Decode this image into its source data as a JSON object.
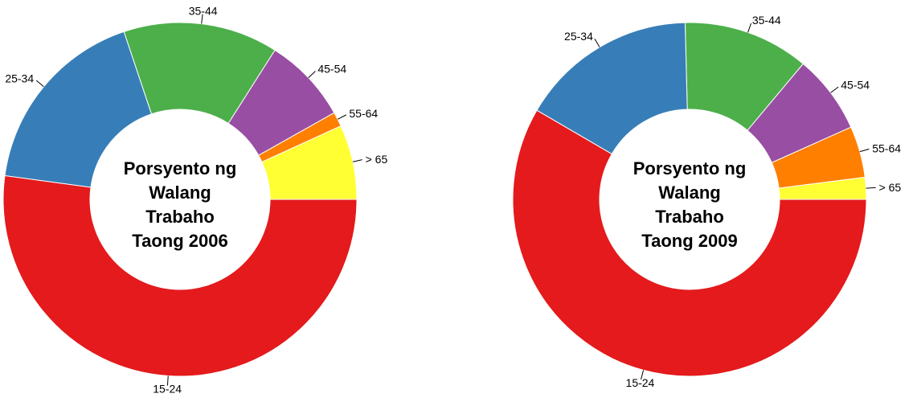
{
  "chart_data": [
    {
      "type": "pie",
      "title_lines": [
        "Porsyento ng",
        "Walang",
        "Trabaho",
        "Taong 2006"
      ],
      "categories": [
        "15-24",
        "25-34",
        "35-44",
        "45-54",
        "55-64",
        "> 65"
      ],
      "values": [
        51.2,
        17.4,
        13.9,
        7.7,
        1.3,
        6.7
      ],
      "colors": [
        "#E41A1C",
        "#377EB8",
        "#4DAF4A",
        "#984EA3",
        "#FF7F00",
        "#FFFF33"
      ],
      "legend": "none"
    },
    {
      "type": "pie",
      "title_lines": [
        "Porsyento ng",
        "Walang",
        "Trabaho",
        "Taong 2009"
      ],
      "categories": [
        "15-24",
        "25-34",
        "35-44",
        "45-54",
        "55-64",
        "> 65"
      ],
      "values": [
        58.4,
        16.2,
        11.5,
        7.2,
        4.7,
        2.0
      ],
      "colors": [
        "#E41A1C",
        "#377EB8",
        "#4DAF4A",
        "#984EA3",
        "#FF7F00",
        "#FFFF33"
      ],
      "legend": "none"
    }
  ]
}
